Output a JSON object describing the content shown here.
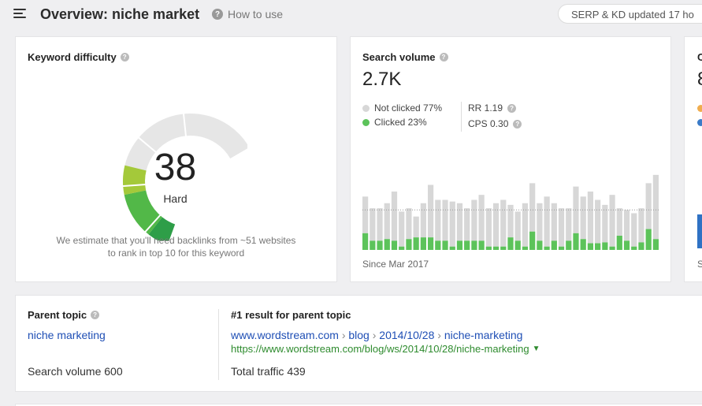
{
  "header": {
    "title": "Overview: niche market",
    "how_to_use": "How to use",
    "serp_status": "SERP & KD updated 17 ho"
  },
  "keyword_difficulty": {
    "title": "Keyword difficulty",
    "value": "38",
    "label": "Hard",
    "note_line1": "We estimate that you'll need backlinks from ~51 websites",
    "note_line2": "to rank in top 10 for this keyword",
    "gauge_fraction": 0.38,
    "colors": {
      "dark_green": "#2e9e48",
      "green": "#52b848",
      "light_green": "#a4c93a",
      "track": "#e6e6e6"
    }
  },
  "search_volume": {
    "title": "Search volume",
    "value": "2.7K",
    "not_clicked": "Not clicked 77%",
    "clicked": "Clicked 23%",
    "rr": "RR 1.19",
    "cps": "CPS 0.30",
    "since": "Since Mar 2017",
    "colors": {
      "not_clicked": "#d7d7d7",
      "clicked": "#5cc35a"
    },
    "chart_data": {
      "type": "bar",
      "series": [
        {
          "name": "Not clicked",
          "values": [
            64,
            50,
            50,
            56,
            70,
            46,
            50,
            40,
            56,
            78,
            60,
            60,
            58,
            56,
            50,
            60,
            66,
            50,
            56,
            60,
            54,
            46,
            56,
            80,
            56,
            64,
            56,
            50,
            50,
            76,
            64,
            70,
            60,
            54,
            66,
            50,
            48,
            44,
            50,
            80,
            90
          ]
        },
        {
          "name": "Clicked",
          "values": [
            20,
            11,
            11,
            13,
            11,
            4,
            13,
            15,
            15,
            15,
            11,
            11,
            4,
            11,
            11,
            11,
            11,
            4,
            4,
            4,
            15,
            11,
            4,
            22,
            11,
            4,
            11,
            4,
            11,
            20,
            13,
            8,
            8,
            9,
            4,
            17,
            11,
            4,
            9,
            25,
            13
          ]
        }
      ],
      "reference_value": 48,
      "ylim": [
        0,
        104
      ]
    }
  },
  "cutoff_card": {
    "title_letter": "C",
    "value_letter": "8",
    "dot1_color": "#f0ad4e",
    "dot2_color": "#3a7bc8",
    "footer_letter": "S"
  },
  "parent_topic": {
    "title": "Parent topic",
    "keyword": "niche marketing",
    "search_volume": "Search volume 600",
    "result_title": "#1 result for parent topic",
    "breadcrumb": [
      "www.wordstream.com",
      "blog",
      "2014/10/28",
      "niche-marketing"
    ],
    "breadcrumb_sep": "›",
    "url": "https://www.wordstream.com/blog/ws/2014/10/28/niche-marketing",
    "total_traffic": "Total traffic 439"
  }
}
